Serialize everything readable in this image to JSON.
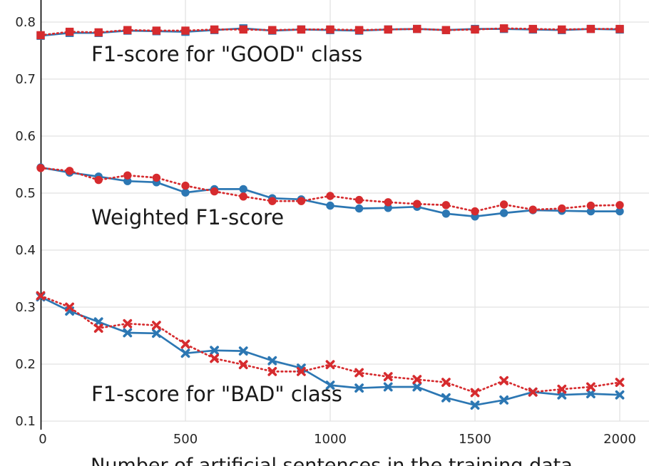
{
  "figure": {
    "background": "#ffffff",
    "colors": {
      "blue_series": "#2c77b3",
      "red_series": "#d62b2e",
      "gridline": "#e2e2e2",
      "axis_spine": "#000000",
      "tick_text": "#262626",
      "annotation_text": "#1a1a1a"
    }
  },
  "chart_data": {
    "type": "line",
    "title": "",
    "xlabel": "Number of artificial sentences in the training data",
    "ylabel": "",
    "xlim": [
      0,
      2000
    ],
    "ylim": [
      0.1,
      0.84
    ],
    "grid": true,
    "legend": "none",
    "xticks": [
      0,
      500,
      1000,
      1500,
      2000
    ],
    "yticks": [
      0.1,
      0.2,
      0.3,
      0.4,
      0.5,
      0.6,
      0.7,
      0.8
    ],
    "x": [
      0,
      100,
      200,
      300,
      400,
      500,
      600,
      700,
      800,
      900,
      1000,
      1100,
      1200,
      1300,
      1400,
      1500,
      1600,
      1700,
      1800,
      1900,
      2000
    ],
    "series": [
      {
        "name": "good-class-blue",
        "color": "blue_series",
        "line": "solid",
        "marker": "square",
        "values": [
          0.776,
          0.781,
          0.781,
          0.785,
          0.784,
          0.783,
          0.786,
          0.789,
          0.785,
          0.787,
          0.786,
          0.785,
          0.787,
          0.788,
          0.786,
          0.788,
          0.788,
          0.787,
          0.786,
          0.788,
          0.787
        ]
      },
      {
        "name": "good-class-red",
        "color": "red_series",
        "line": "dotted",
        "marker": "square",
        "values": [
          0.777,
          0.783,
          0.782,
          0.786,
          0.785,
          0.785,
          0.787,
          0.787,
          0.786,
          0.787,
          0.787,
          0.786,
          0.787,
          0.788,
          0.786,
          0.787,
          0.789,
          0.788,
          0.787,
          0.788,
          0.788
        ]
      },
      {
        "name": "weighted-blue",
        "color": "blue_series",
        "line": "solid",
        "marker": "circle",
        "values": [
          0.545,
          0.536,
          0.529,
          0.521,
          0.519,
          0.501,
          0.507,
          0.507,
          0.491,
          0.489,
          0.478,
          0.473,
          0.474,
          0.476,
          0.464,
          0.459,
          0.465,
          0.47,
          0.469,
          0.468,
          0.468
        ]
      },
      {
        "name": "weighted-red",
        "color": "red_series",
        "line": "dotted",
        "marker": "circle",
        "values": [
          0.544,
          0.539,
          0.523,
          0.531,
          0.527,
          0.513,
          0.503,
          0.494,
          0.486,
          0.486,
          0.495,
          0.488,
          0.484,
          0.481,
          0.479,
          0.468,
          0.48,
          0.471,
          0.473,
          0.478,
          0.479
        ]
      },
      {
        "name": "bad-class-blue",
        "color": "blue_series",
        "line": "solid",
        "marker": "x",
        "values": [
          0.318,
          0.293,
          0.274,
          0.255,
          0.254,
          0.219,
          0.224,
          0.223,
          0.206,
          0.193,
          0.163,
          0.158,
          0.16,
          0.16,
          0.141,
          0.128,
          0.137,
          0.151,
          0.146,
          0.148,
          0.146
        ]
      },
      {
        "name": "bad-class-red",
        "color": "red_series",
        "line": "dotted",
        "marker": "x",
        "values": [
          0.32,
          0.3,
          0.263,
          0.271,
          0.268,
          0.235,
          0.21,
          0.199,
          0.187,
          0.187,
          0.199,
          0.185,
          0.178,
          0.173,
          0.168,
          0.15,
          0.171,
          0.151,
          0.156,
          0.16,
          0.168
        ]
      }
    ],
    "annotations": [
      {
        "name": "good-class-label",
        "text": "F1-score for \"GOOD\" class",
        "x": 175,
        "y": 0.731,
        "anchor": "start"
      },
      {
        "name": "weighted-label",
        "text": "Weighted F1-score",
        "x": 175,
        "y": 0.445,
        "anchor": "start"
      },
      {
        "name": "bad-class-label",
        "text": "F1-score for \"BAD\" class",
        "x": 175,
        "y": 0.135,
        "anchor": "start"
      }
    ]
  }
}
